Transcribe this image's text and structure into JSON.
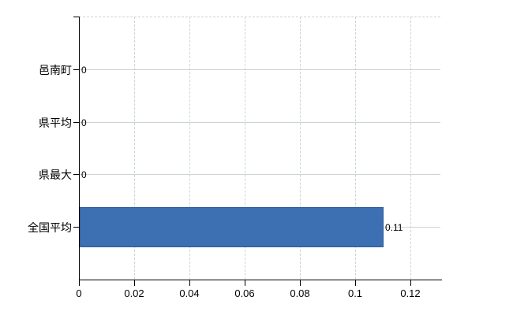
{
  "chart_data": {
    "type": "bar",
    "orientation": "horizontal",
    "title": "",
    "xlabel": "",
    "ylabel": "",
    "categories": [
      "邑南町",
      "県平均",
      "県最大",
      "全国平均"
    ],
    "values": [
      0,
      0,
      0,
      0.11
    ],
    "value_labels": [
      "0",
      "0",
      "0",
      "0.11"
    ],
    "x_ticks": [
      {
        "value": 0,
        "label": "0"
      },
      {
        "value": 0.02,
        "label": "0.02"
      },
      {
        "value": 0.04,
        "label": "0.04"
      },
      {
        "value": 0.06,
        "label": "0.06"
      },
      {
        "value": 0.08,
        "label": "0.08"
      },
      {
        "value": 0.1,
        "label": "0.1"
      },
      {
        "value": 0.12,
        "label": "0.12"
      }
    ],
    "xlim": [
      0,
      0.1309
    ],
    "grid": true,
    "legend": "none",
    "colors": {
      "bar_fill": "#3d6fb3",
      "bar_border": "#2d5d9c",
      "gridline": "#ccd5cc",
      "axis": "#000000",
      "text": "#000000"
    }
  }
}
